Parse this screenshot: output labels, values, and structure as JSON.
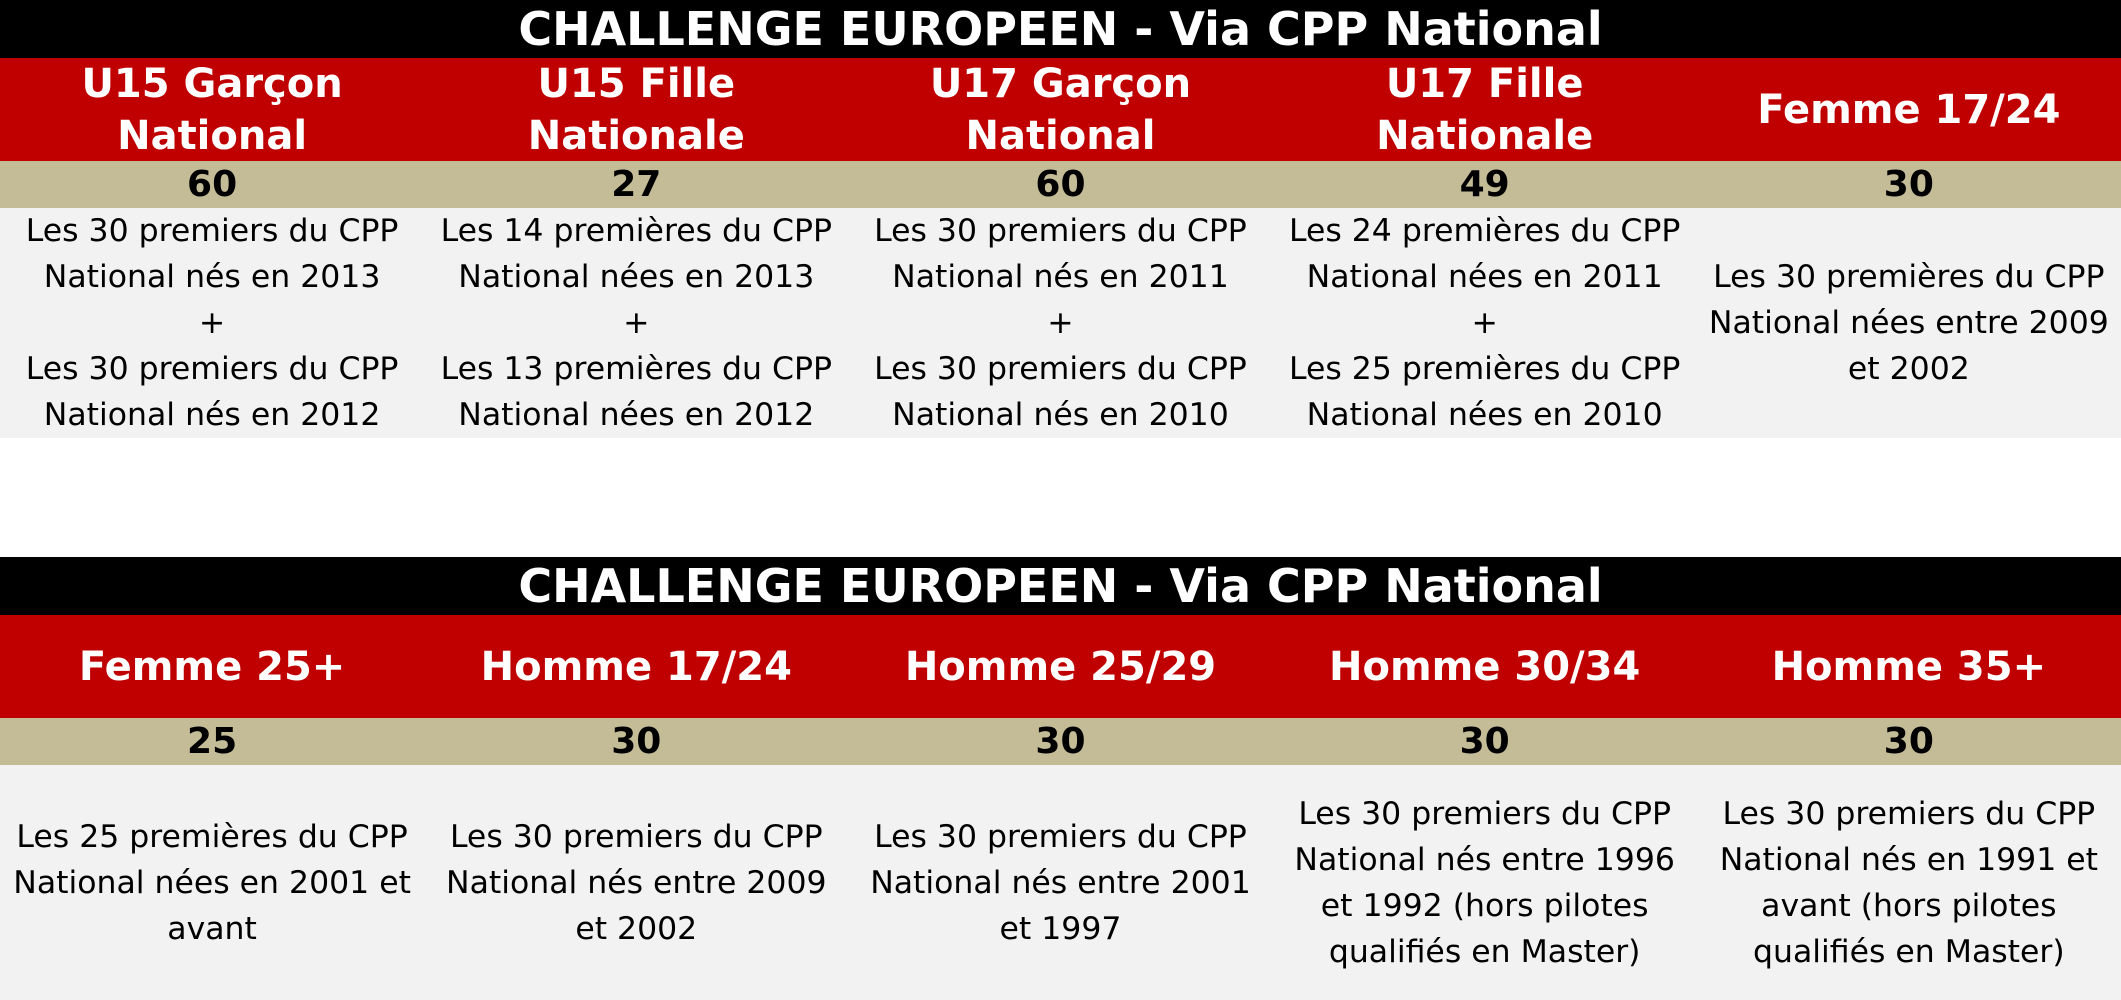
{
  "sections": [
    {
      "title": "CHALLENGE EUROPEEN - Via CPP National",
      "categories": [
        {
          "name_lines": [
            "U15 Garçon",
            "National"
          ],
          "count": "60",
          "desc_lines": [
            "Les 30 premiers du CPP",
            "National nés en 2013",
            "+",
            "Les 30 premiers du CPP",
            "National nés en 2012"
          ]
        },
        {
          "name_lines": [
            "U15 Fille",
            "Nationale"
          ],
          "count": "27",
          "desc_lines": [
            "Les 14 premières du CPP",
            "National nées en 2013",
            "+",
            "Les 13 premières du CPP",
            "National nées en 2012"
          ]
        },
        {
          "name_lines": [
            "U17 Garçon",
            "National"
          ],
          "count": "60",
          "desc_lines": [
            "Les 30 premiers du CPP",
            "National nés en 2011",
            "+",
            "Les 30 premiers du CPP",
            "National nés en 2010"
          ]
        },
        {
          "name_lines": [
            "U17 Fille",
            "Nationale"
          ],
          "count": "49",
          "desc_lines": [
            "Les 24 premières du CPP",
            "National nées en 2011",
            "+",
            "Les 25 premières du CPP",
            "National nées en 2010"
          ]
        },
        {
          "name_lines": [
            "Femme 17/24"
          ],
          "count": "30",
          "desc_lines": [
            "Les 30 premières du CPP",
            "National nées entre 2009",
            "et 2002"
          ]
        }
      ]
    },
    {
      "title": "CHALLENGE EUROPEEN - Via CPP National",
      "categories": [
        {
          "name_lines": [
            "Femme 25+"
          ],
          "count": "25",
          "desc_lines": [
            "Les 25 premières du CPP",
            "National nées en 2001 et",
            "avant"
          ]
        },
        {
          "name_lines": [
            "Homme 17/24"
          ],
          "count": "30",
          "desc_lines": [
            "Les 30 premiers du CPP",
            "National nés entre 2009",
            "et 2002"
          ]
        },
        {
          "name_lines": [
            "Homme 25/29"
          ],
          "count": "30",
          "desc_lines": [
            "Les 30 premiers du CPP",
            "National nés entre 2001",
            "et 1997"
          ]
        },
        {
          "name_lines": [
            "Homme 30/34"
          ],
          "count": "30",
          "desc_lines": [
            "Les 30 premiers du CPP",
            "National nés entre 1996",
            "et 1992 (hors pilotes",
            "qualifiés en Master)"
          ]
        },
        {
          "name_lines": [
            "Homme 35+"
          ],
          "count": "30",
          "desc_lines": [
            "Les 30 premiers du CPP",
            "National nés en 1991 et",
            "avant (hors pilotes",
            "qualifiés en Master)"
          ]
        }
      ]
    }
  ],
  "colors": {
    "title_bg": "#000000",
    "header_bg": "#c00000",
    "count_bg": "#c4bc97",
    "desc_bg": "#f2f2f2"
  }
}
